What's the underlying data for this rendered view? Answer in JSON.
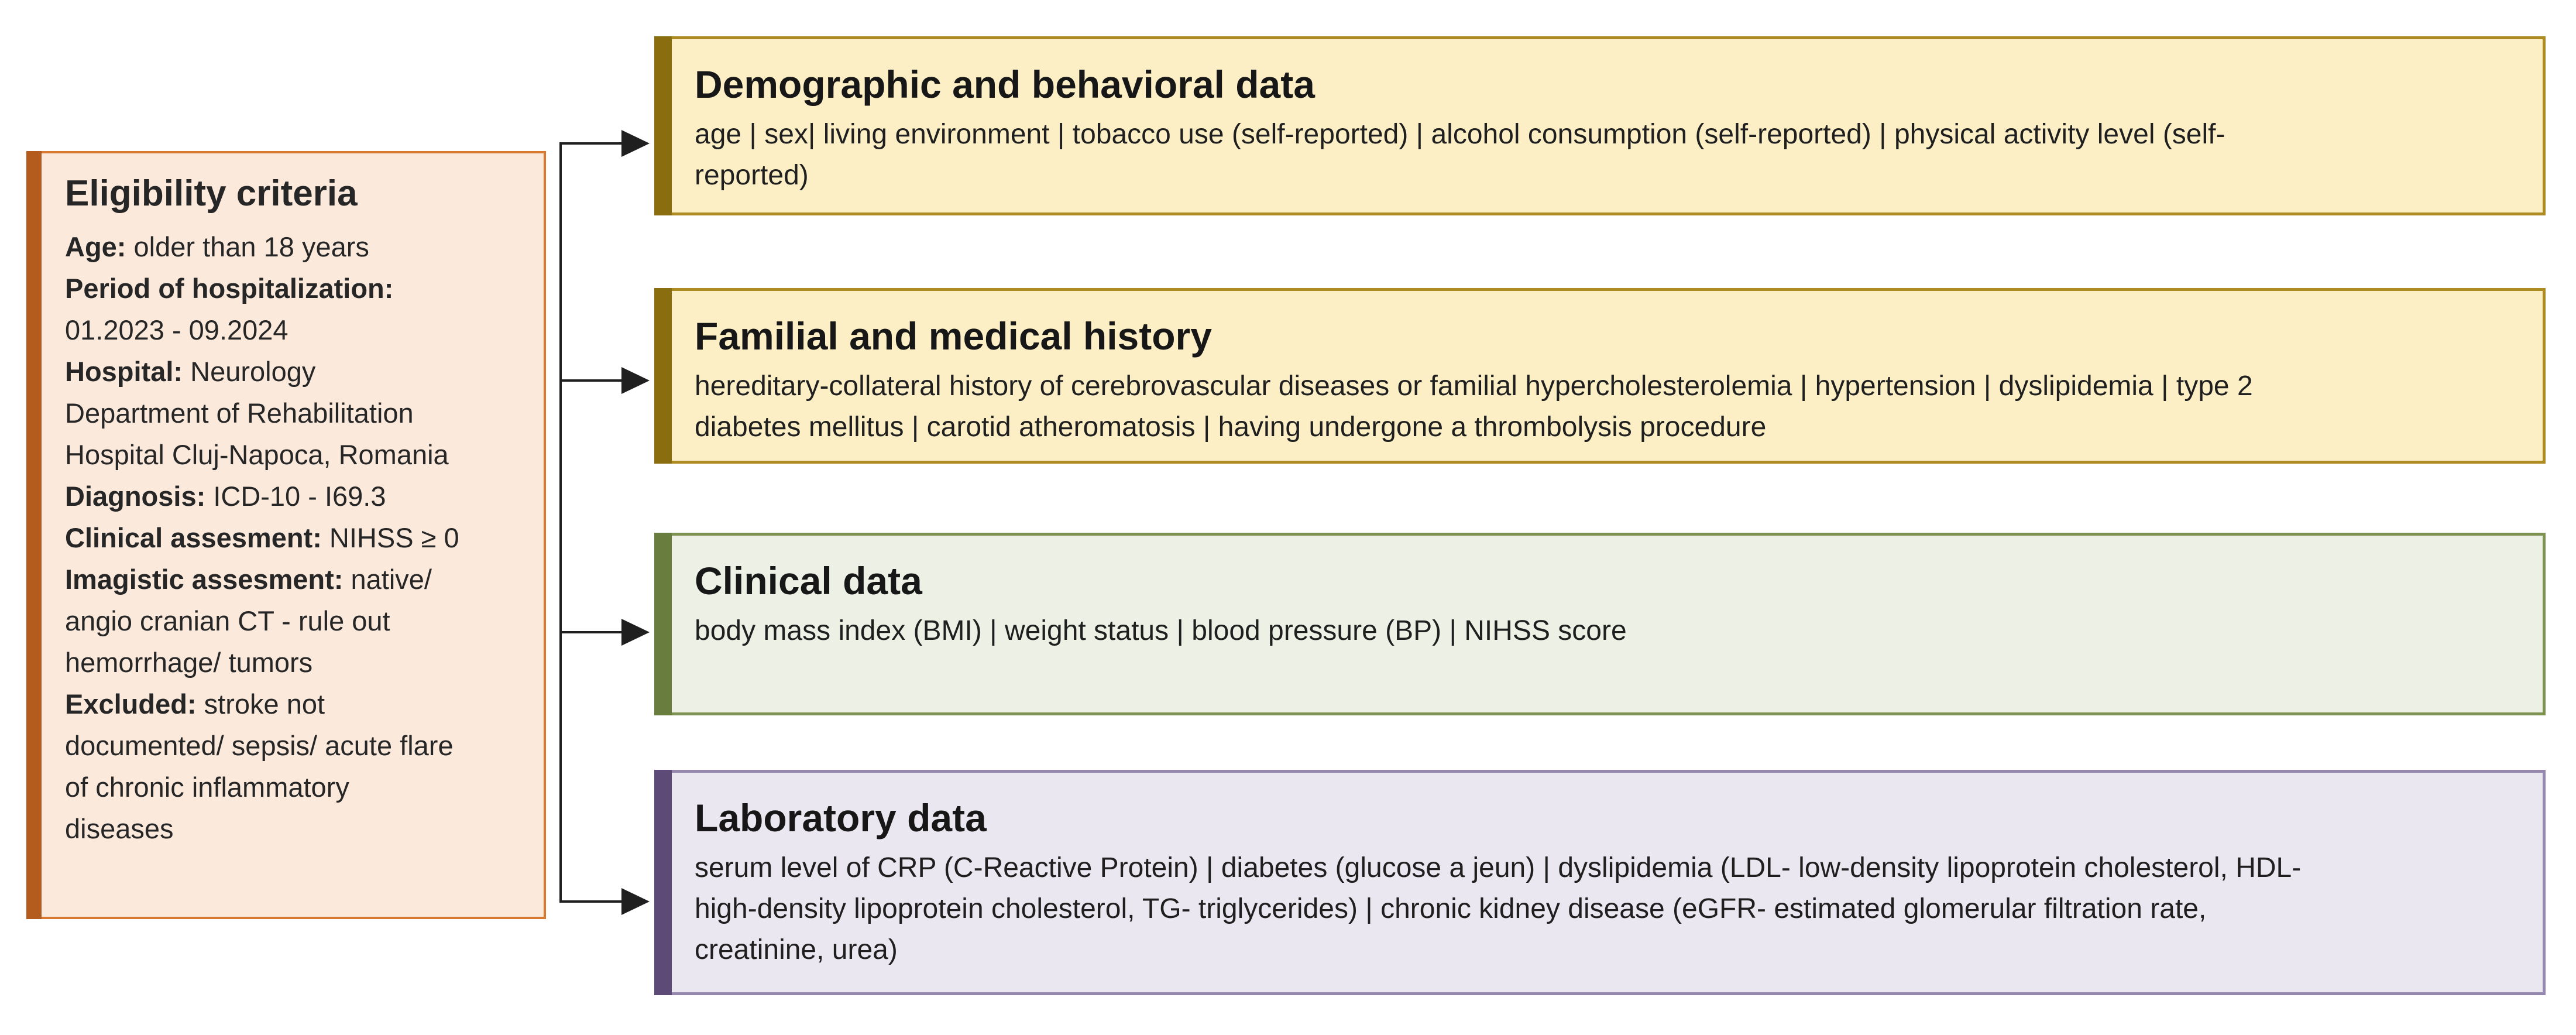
{
  "palette": {
    "left": {
      "bar": "#b35c1e",
      "border": "#d9782f",
      "fill": "#fbe9dc"
    },
    "gold": {
      "bar": "#8a6d0e",
      "border": "#ad8b22",
      "fill": "#fcefc5"
    },
    "green": {
      "bar": "#697d3e",
      "border": "#7d9150",
      "fill": "#edf1e5"
    },
    "purple": {
      "bar": "#5e4a76",
      "border": "#9587ae",
      "fill": "#eae7f0"
    }
  },
  "arrow_color": "#1f1f1f",
  "eligibility": {
    "theme": "left",
    "title": "Eligibility criteria",
    "lines": [
      {
        "b": "Age:",
        "t": " older than 18 years"
      },
      {
        "b": "Period of hospitalization:",
        "t": ""
      },
      {
        "b": "",
        "t": "01.2023 - 09.2024"
      },
      {
        "b": "Hospital:",
        "t": " Neurology"
      },
      {
        "b": "",
        "t": "Department of Rehabilitation"
      },
      {
        "b": "",
        "t": "Hospital Cluj-Napoca, Romania"
      },
      {
        "b": "Diagnosis:",
        "t": " ICD-10 - I69.3"
      },
      {
        "b": "Clinical assesment:",
        "t": " NIHSS ≥ 0"
      },
      {
        "b": "Imagistic assesment:",
        "t": " native/"
      },
      {
        "b": "",
        "t": "angio cranian CT - rule out"
      },
      {
        "b": "",
        "t": "hemorrhage/ tumors"
      },
      {
        "b": "Excluded:",
        "t": " stroke not"
      },
      {
        "b": "",
        "t": "documented/ sepsis/ acute flare"
      },
      {
        "b": "",
        "t": "of chronic inflammatory"
      },
      {
        "b": "",
        "t": "diseases"
      }
    ]
  },
  "categories": [
    {
      "theme": "gold",
      "title": "Demographic and behavioral data",
      "lines": [
        "age | sex| living environment | tobacco use (self-reported) | alcohol consumption (self-reported) | physical activity level (self-",
        "reported)"
      ]
    },
    {
      "theme": "gold",
      "title": "Familial and medical history",
      "lines": [
        "hereditary-collateral history of cerebrovascular diseases or familial hypercholesterolemia | hypertension | dyslipidemia | type 2",
        "diabetes mellitus | carotid atheromatosis | having undergone a thrombolysis procedure"
      ]
    },
    {
      "theme": "green",
      "title": "Clinical data",
      "lines": [
        "body mass index (BMI) | weight status | blood pressure (BP) | NIHSS score"
      ]
    },
    {
      "theme": "purple",
      "title": "Laboratory data",
      "lines": [
        "serum level of CRP (C-Reactive Protein) | diabetes (glucose a jeun) | dyslipidemia (LDL- low-density lipoprotein cholesterol, HDL-",
        "high-density lipoprotein cholesterol, TG- triglycerides) | chronic kidney disease (eGFR- estimated glomerular filtration rate,",
        "creatinine, urea)"
      ]
    }
  ]
}
